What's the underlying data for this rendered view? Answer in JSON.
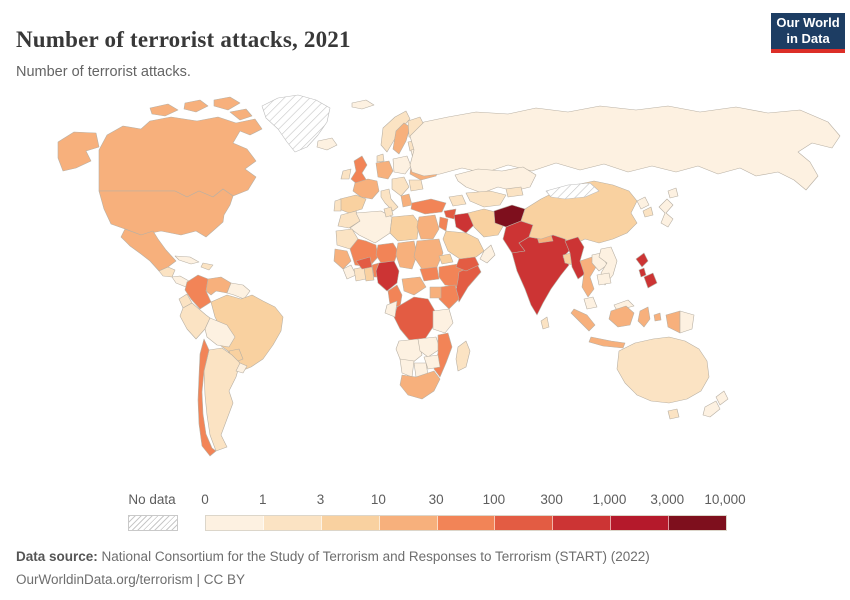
{
  "header": {
    "title": "Number of terrorist attacks, 2021",
    "subtitle": "Number of terrorist attacks.",
    "logo": {
      "line1": "Our World",
      "line2": "in Data",
      "bg_color": "#1d3d63",
      "accent_color": "#dc2e28"
    }
  },
  "legend": {
    "no_data_label": "No data",
    "tick_labels": [
      "0",
      "1",
      "3",
      "10",
      "30",
      "100",
      "300",
      "1,000",
      "3,000",
      "10,000"
    ]
  },
  "footer": {
    "source_label": "Data source:",
    "source_text": " National Consortium for the Study of Terrorism and Responses to Terrorism (START) (2022)",
    "link_line": "OurWorldinData.org/terrorism | CC BY"
  },
  "chart_data": {
    "type": "heatmap",
    "subtype": "choropleth-world-map",
    "title": "Number of terrorist attacks, 2021",
    "unit": "terrorist attacks",
    "year": 2021,
    "scale": "log-binned",
    "legend_position": "bottom",
    "bins": [
      {
        "label": "0",
        "range": "0–1",
        "color": "#fdf1e1"
      },
      {
        "label": "1",
        "range": "1–3",
        "color": "#fbe3c3"
      },
      {
        "label": "3",
        "range": "3–10",
        "color": "#f9d1a0"
      },
      {
        "label": "10",
        "range": "10–30",
        "color": "#f7b07c"
      },
      {
        "label": "30",
        "range": "30–100",
        "color": "#f28457"
      },
      {
        "label": "100",
        "range": "100–300",
        "color": "#e35c43"
      },
      {
        "label": "300",
        "range": "300–1,000",
        "color": "#cc3434"
      },
      {
        "label": "1,000",
        "range": "1,000–3,000",
        "color": "#b5192b"
      },
      {
        "label": "3,000",
        "range": "3,000–10,000",
        "color": "#7e0f1d"
      }
    ],
    "no_data_color": "hatched",
    "countries": [
      {
        "id": "canada",
        "name": "Canada",
        "bin": 3
      },
      {
        "id": "usa",
        "name": "United States",
        "bin": 3
      },
      {
        "id": "mexico",
        "name": "Mexico",
        "bin": 3
      },
      {
        "id": "greenland",
        "name": "Greenland",
        "bin": -1
      },
      {
        "id": "guatemala",
        "name": "Guatemala",
        "bin": 1
      },
      {
        "id": "panama-region",
        "name": "Costa Rica / Panama",
        "bin": 0
      },
      {
        "id": "cuba",
        "name": "Cuba",
        "bin": 0
      },
      {
        "id": "hispaniola",
        "name": "Haiti / Dominican Rep.",
        "bin": 1
      },
      {
        "id": "colombia",
        "name": "Colombia",
        "bin": 4
      },
      {
        "id": "venezuela",
        "name": "Venezuela",
        "bin": 3
      },
      {
        "id": "guyanas",
        "name": "Guyana / Suriname",
        "bin": 0
      },
      {
        "id": "ecuador",
        "name": "Ecuador",
        "bin": 1
      },
      {
        "id": "peru",
        "name": "Peru",
        "bin": 1
      },
      {
        "id": "brazil",
        "name": "Brazil",
        "bin": 2
      },
      {
        "id": "bolivia",
        "name": "Bolivia",
        "bin": 0
      },
      {
        "id": "paraguay",
        "name": "Paraguay",
        "bin": 2
      },
      {
        "id": "chile",
        "name": "Chile",
        "bin": 4
      },
      {
        "id": "argentina",
        "name": "Argentina",
        "bin": 1
      },
      {
        "id": "uruguay",
        "name": "Uruguay",
        "bin": 0
      },
      {
        "id": "iceland",
        "name": "Iceland",
        "bin": 0
      },
      {
        "id": "uk",
        "name": "United Kingdom",
        "bin": 4
      },
      {
        "id": "ireland",
        "name": "Ireland",
        "bin": 1
      },
      {
        "id": "norway",
        "name": "Norway",
        "bin": 1
      },
      {
        "id": "sweden",
        "name": "Sweden",
        "bin": 3
      },
      {
        "id": "finland",
        "name": "Finland",
        "bin": 1
      },
      {
        "id": "baltics",
        "name": "Baltic states",
        "bin": 1
      },
      {
        "id": "denmark",
        "name": "Denmark",
        "bin": 1
      },
      {
        "id": "germany",
        "name": "Germany",
        "bin": 3
      },
      {
        "id": "poland",
        "name": "Poland",
        "bin": 0
      },
      {
        "id": "belarus",
        "name": "Belarus",
        "bin": 0
      },
      {
        "id": "ukraine",
        "name": "Ukraine",
        "bin": 3
      },
      {
        "id": "france",
        "name": "France",
        "bin": 3
      },
      {
        "id": "spain",
        "name": "Spain",
        "bin": 2
      },
      {
        "id": "portugal",
        "name": "Portugal",
        "bin": 1
      },
      {
        "id": "italy",
        "name": "Italy",
        "bin": 1
      },
      {
        "id": "balkans",
        "name": "Balkans",
        "bin": 1
      },
      {
        "id": "romania",
        "name": "Romania",
        "bin": 1
      },
      {
        "id": "greece",
        "name": "Greece",
        "bin": 3
      },
      {
        "id": "turkey",
        "name": "Turkey",
        "bin": 4
      },
      {
        "id": "caucasus",
        "name": "Caucasus",
        "bin": 1
      },
      {
        "id": "russia",
        "name": "Russia",
        "bin": 0
      },
      {
        "id": "svalbard",
        "name": "Svalbard",
        "bin": 0
      },
      {
        "id": "kazakhstan",
        "name": "Kazakhstan",
        "bin": 0
      },
      {
        "id": "uzbek-turkmen",
        "name": "Uzbekistan / Turkmenistan",
        "bin": 1
      },
      {
        "id": "kyrgyz-tajik",
        "name": "Kyrgyzstan / Tajikistan",
        "bin": 1
      },
      {
        "id": "morocco",
        "name": "Morocco",
        "bin": 1
      },
      {
        "id": "algeria",
        "name": "Algeria",
        "bin": 0
      },
      {
        "id": "tunisia",
        "name": "Tunisia",
        "bin": 1
      },
      {
        "id": "libya",
        "name": "Libya",
        "bin": 2
      },
      {
        "id": "egypt",
        "name": "Egypt",
        "bin": 3
      },
      {
        "id": "mauritania",
        "name": "Mauritania",
        "bin": 1
      },
      {
        "id": "mali",
        "name": "Mali",
        "bin": 4
      },
      {
        "id": "niger",
        "name": "Niger",
        "bin": 4
      },
      {
        "id": "chad",
        "name": "Chad",
        "bin": 3
      },
      {
        "id": "sudan",
        "name": "Sudan",
        "bin": 3
      },
      {
        "id": "eritrea",
        "name": "Eritrea",
        "bin": 2
      },
      {
        "id": "senegal-guinea",
        "name": "Senegal / Guinea",
        "bin": 3
      },
      {
        "id": "sierra-liberia",
        "name": "Sierra Leone / Liberia",
        "bin": 0
      },
      {
        "id": "ivory-coast",
        "name": "Cote d'Ivoire",
        "bin": 1
      },
      {
        "id": "ghana",
        "name": "Ghana",
        "bin": 2
      },
      {
        "id": "burkina",
        "name": "Burkina Faso",
        "bin": 5
      },
      {
        "id": "benin-togo",
        "name": "Benin / Togo",
        "bin": 4
      },
      {
        "id": "nigeria",
        "name": "Nigeria",
        "bin": 6
      },
      {
        "id": "cameroon",
        "name": "Cameroon",
        "bin": 4
      },
      {
        "id": "car",
        "name": "Central African Republic",
        "bin": 3
      },
      {
        "id": "south-sudan",
        "name": "South Sudan",
        "bin": 4
      },
      {
        "id": "ethiopia",
        "name": "Ethiopia",
        "bin": 4
      },
      {
        "id": "somalia",
        "name": "Somalia",
        "bin": 5
      },
      {
        "id": "kenya",
        "name": "Kenya",
        "bin": 4
      },
      {
        "id": "uganda",
        "name": "Uganda",
        "bin": 3
      },
      {
        "id": "drc",
        "name": "Democratic Republic of Congo",
        "bin": 5
      },
      {
        "id": "congo-gabon",
        "name": "Congo / Gabon",
        "bin": 0
      },
      {
        "id": "tanzania",
        "name": "Tanzania",
        "bin": 0
      },
      {
        "id": "angola",
        "name": "Angola",
        "bin": 0
      },
      {
        "id": "zambia",
        "name": "Zambia",
        "bin": 0
      },
      {
        "id": "mozambique",
        "name": "Mozambique",
        "bin": 4
      },
      {
        "id": "zimbabwe",
        "name": "Zimbabwe",
        "bin": 0
      },
      {
        "id": "namibia",
        "name": "Namibia",
        "bin": 0
      },
      {
        "id": "botswana",
        "name": "Botswana",
        "bin": 0
      },
      {
        "id": "south-africa",
        "name": "South Africa",
        "bin": 3
      },
      {
        "id": "madagascar",
        "name": "Madagascar",
        "bin": 1
      },
      {
        "id": "syria",
        "name": "Syria",
        "bin": 5
      },
      {
        "id": "levant",
        "name": "Israel / Jordan",
        "bin": 4
      },
      {
        "id": "iraq",
        "name": "Iraq",
        "bin": 6
      },
      {
        "id": "iran",
        "name": "Iran",
        "bin": 2
      },
      {
        "id": "saudi",
        "name": "Saudi Arabia",
        "bin": 2
      },
      {
        "id": "yemen",
        "name": "Yemen",
        "bin": 5
      },
      {
        "id": "oman",
        "name": "Oman",
        "bin": 0
      },
      {
        "id": "afghanistan",
        "name": "Afghanistan",
        "bin": 8
      },
      {
        "id": "pakistan",
        "name": "Pakistan",
        "bin": 6
      },
      {
        "id": "india",
        "name": "India",
        "bin": 6
      },
      {
        "id": "nepal",
        "name": "Nepal",
        "bin": 3
      },
      {
        "id": "bangladesh",
        "name": "Bangladesh",
        "bin": 2
      },
      {
        "id": "sri-lanka",
        "name": "Sri Lanka",
        "bin": 1
      },
      {
        "id": "china",
        "name": "China",
        "bin": 2
      },
      {
        "id": "mongolia",
        "name": "Mongolia",
        "bin": -1
      },
      {
        "id": "north-korea",
        "name": "North Korea",
        "bin": 0
      },
      {
        "id": "south-korea",
        "name": "South Korea",
        "bin": 1
      },
      {
        "id": "japan",
        "name": "Japan",
        "bin": 0
      },
      {
        "id": "myanmar",
        "name": "Myanmar",
        "bin": 6
      },
      {
        "id": "thailand",
        "name": "Thailand",
        "bin": 3
      },
      {
        "id": "laos",
        "name": "Laos",
        "bin": 0
      },
      {
        "id": "vietnam",
        "name": "Vietnam",
        "bin": 0
      },
      {
        "id": "cambodia",
        "name": "Cambodia",
        "bin": 0
      },
      {
        "id": "malaysia",
        "name": "Malaysia",
        "bin": 0
      },
      {
        "id": "indonesia",
        "name": "Indonesia",
        "bin": 3
      },
      {
        "id": "png",
        "name": "Papua New Guinea",
        "bin": 0
      },
      {
        "id": "philippines",
        "name": "Philippines",
        "bin": 6
      },
      {
        "id": "australia",
        "name": "Australia",
        "bin": 1
      },
      {
        "id": "nz",
        "name": "New Zealand",
        "bin": 0
      }
    ]
  }
}
